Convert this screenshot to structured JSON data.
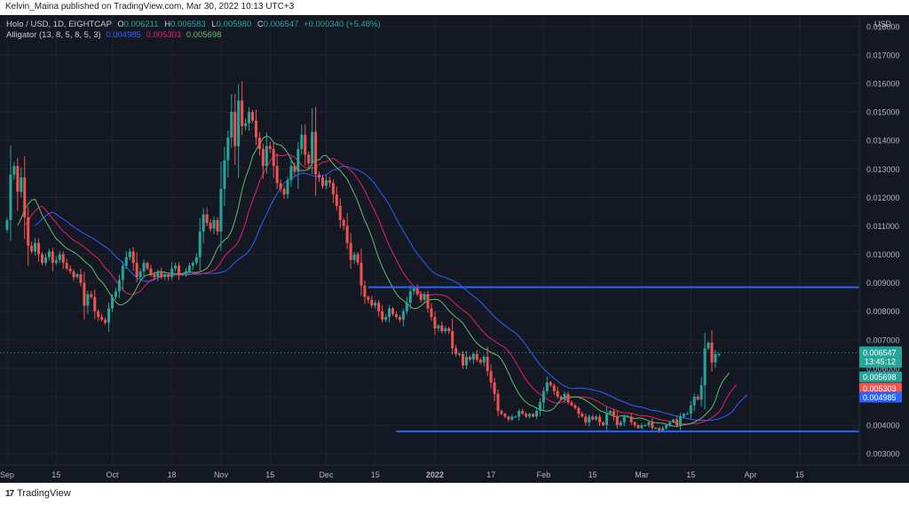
{
  "header": {
    "published": "Kelvin_Maina published on TradingView.com, Mar 30, 2022 10:13 UTC+3"
  },
  "footer": {
    "brand": "TradingView",
    "logo": "17"
  },
  "legend": {
    "symbol": "Holo / USD, 1D, EIGHTCAP",
    "o_label": "O",
    "o": "0.006211",
    "h_label": "H",
    "h": "0.006583",
    "l_label": "L",
    "l": "0.005980",
    "c_label": "C",
    "c": "0.006547",
    "change": "+0.000340 (+5.48%)",
    "alligator_label": "Alligator (13, 8, 5, 8, 5, 3)",
    "jaw": "0.004985",
    "teeth": "0.005303",
    "lips": "0.005698"
  },
  "colors": {
    "background": "#141823",
    "up": "#26a69a",
    "down": "#ef5350",
    "jaw": "#2962ff",
    "teeth": "#e91e63",
    "lips": "#66bb6a",
    "hline": "#2962ff",
    "last_price": "#26a69a",
    "axis_text": "#b2b5be",
    "grid": "#1f2430"
  },
  "chart_data": {
    "type": "candlestick",
    "currency": "USD",
    "ylim": [
      0.0026,
      0.0184
    ],
    "y_ticks": [
      "0.003000",
      "0.004000",
      "0.005000",
      "0.006000",
      "0.007000",
      "0.008000",
      "0.009000",
      "0.010000",
      "0.011000",
      "0.012000",
      "0.013000",
      "0.014000",
      "0.015000",
      "0.016000",
      "0.017000",
      "0.018000"
    ],
    "x_ticks": [
      {
        "label": "Sep",
        "day": 0
      },
      {
        "label": "15",
        "day": 14
      },
      {
        "label": "Oct",
        "day": 30
      },
      {
        "label": "18",
        "day": 47
      },
      {
        "label": "Nov",
        "day": 61
      },
      {
        "label": "15",
        "day": 75
      },
      {
        "label": "Dec",
        "day": 91
      },
      {
        "label": "15",
        "day": 105
      },
      {
        "label": "2022",
        "day": 122
      },
      {
        "label": "17",
        "day": 138
      },
      {
        "label": "Feb",
        "day": 153
      },
      {
        "label": "15",
        "day": 167
      },
      {
        "label": "Mar",
        "day": 181
      },
      {
        "label": "15",
        "day": 195
      },
      {
        "label": "Apr",
        "day": 212
      },
      {
        "label": "15",
        "day": 226
      }
    ],
    "date_start": "Sep 1 2021",
    "dates_end": "Mar 30 2022",
    "close": [
      0.0112,
      0.0128,
      0.0131,
      0.0122,
      0.0127,
      0.0113,
      0.0103,
      0.0101,
      0.0104,
      0.01,
      0.0097,
      0.0099,
      0.0101,
      0.0097,
      0.0098,
      0.01,
      0.0097,
      0.0095,
      0.0094,
      0.0092,
      0.0093,
      0.009,
      0.0082,
      0.0086,
      0.0085,
      0.008,
      0.0078,
      0.0077,
      0.0076,
      0.0081,
      0.0085,
      0.0087,
      0.0091,
      0.0096,
      0.0099,
      0.0101,
      0.0097,
      0.0092,
      0.0094,
      0.0097,
      0.0095,
      0.0093,
      0.0092,
      0.0094,
      0.0092,
      0.0093,
      0.0092,
      0.0095,
      0.0096,
      0.0093,
      0.0093,
      0.0094,
      0.0096,
      0.0097,
      0.0099,
      0.0108,
      0.0114,
      0.0111,
      0.0109,
      0.0112,
      0.0108,
      0.0123,
      0.0133,
      0.0141,
      0.015,
      0.0138,
      0.0154,
      0.0145,
      0.0146,
      0.015,
      0.0147,
      0.0141,
      0.0137,
      0.0131,
      0.0138,
      0.0137,
      0.0131,
      0.0125,
      0.0123,
      0.0121,
      0.0126,
      0.0131,
      0.0129,
      0.0137,
      0.0142,
      0.0135,
      0.0132,
      0.0143,
      0.0128,
      0.0127,
      0.0124,
      0.0126,
      0.0125,
      0.0121,
      0.0117,
      0.0112,
      0.011,
      0.0104,
      0.0098,
      0.01,
      0.0097,
      0.0089,
      0.0085,
      0.0084,
      0.0082,
      0.0083,
      0.008,
      0.0077,
      0.0078,
      0.0081,
      0.0079,
      0.0078,
      0.0077,
      0.008,
      0.0083,
      0.0087,
      0.0088,
      0.0086,
      0.0084,
      0.0086,
      0.0081,
      0.0078,
      0.0074,
      0.0075,
      0.0073,
      0.0074,
      0.0073,
      0.0067,
      0.0065,
      0.0065,
      0.0061,
      0.0064,
      0.0063,
      0.0065,
      0.0063,
      0.0062,
      0.0064,
      0.0059,
      0.0055,
      0.0051,
      0.0045,
      0.0044,
      0.0043,
      0.0042,
      0.0043,
      0.0043,
      0.0045,
      0.0044,
      0.0043,
      0.0044,
      0.0043,
      0.0045,
      0.0048,
      0.0052,
      0.0055,
      0.0054,
      0.0052,
      0.005,
      0.0049,
      0.0051,
      0.0048,
      0.0047,
      0.0046,
      0.0044,
      0.0043,
      0.0041,
      0.0043,
      0.0042,
      0.0043,
      0.0041,
      0.004,
      0.0044,
      0.0045,
      0.0043,
      0.004,
      0.0041,
      0.0043,
      0.0043,
      0.0041,
      0.004,
      0.0039,
      0.004,
      0.004,
      0.0041,
      0.0039,
      0.0039,
      0.0038,
      0.0039,
      0.004,
      0.0041,
      0.0042,
      0.004,
      0.0043,
      0.0044,
      0.0044,
      0.0047,
      0.005,
      0.0049,
      0.0054,
      0.0067,
      0.0069,
      0.0062,
      0.0065,
      0.0065
    ],
    "hlines": [
      {
        "value": 0.008843,
        "label": "0.008843"
      },
      {
        "value": 0.003782,
        "label": "0.003782"
      }
    ],
    "last_price": {
      "value": "0.006547",
      "countdown": "13:45:12"
    },
    "indicator_tags": [
      {
        "value": "0.005698",
        "name": "lips"
      },
      {
        "value": "0.005303",
        "name": "teeth"
      },
      {
        "value": "0.004985",
        "name": "jaw"
      }
    ]
  }
}
